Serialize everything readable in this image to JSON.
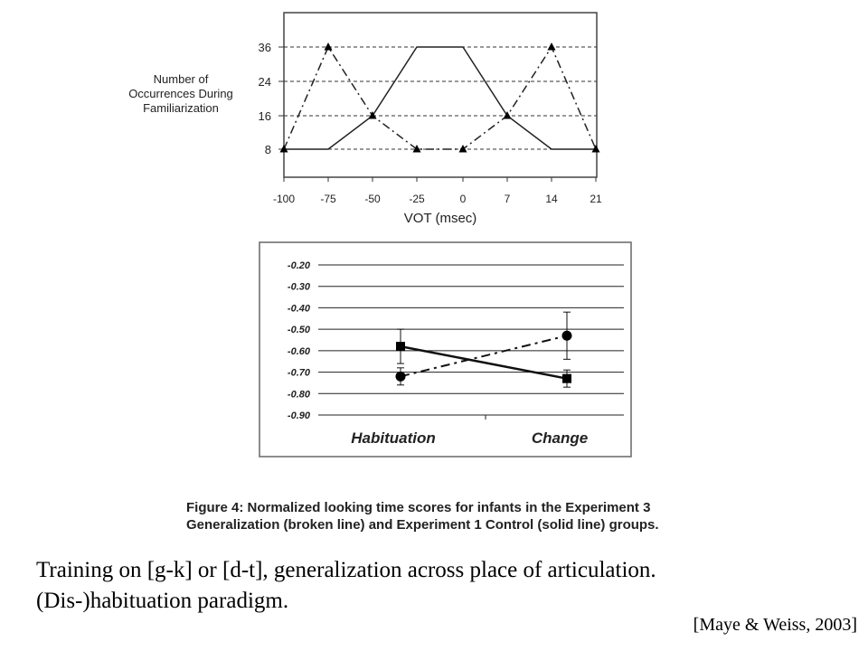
{
  "chart_data": [
    {
      "type": "line",
      "ylabel_lines": [
        "Number of",
        "Occurrences During",
        "Familiarization"
      ],
      "xlabel": "VOT (msec)",
      "categories": [
        "-100",
        "-75",
        "-50",
        "-25",
        "0",
        "7",
        "14",
        "21"
      ],
      "yticks": [
        8,
        16,
        24,
        36
      ],
      "grid": "dashed horizontal at y ticks",
      "series": [
        {
          "style": "solid",
          "values": [
            8,
            8,
            16,
            36,
            36,
            16,
            8,
            8
          ]
        },
        {
          "style": "dash-dot",
          "marker": "triangle",
          "values": [
            8,
            36,
            16,
            8,
            8,
            16,
            36,
            8
          ]
        }
      ]
    },
    {
      "type": "line",
      "categories": [
        "Habituation",
        "Change"
      ],
      "yticks": [
        "-0.20",
        "-0.30",
        "-0.40",
        "-0.50",
        "-0.60",
        "-0.70",
        "-0.80",
        "-0.90"
      ],
      "ylim": [
        -0.9,
        -0.2
      ],
      "grid": "solid horizontal at y ticks",
      "series": [
        {
          "style": "solid",
          "marker": "square",
          "values": [
            -0.58,
            -0.73
          ],
          "error": [
            0.08,
            0.04
          ]
        },
        {
          "style": "dash-dot",
          "marker": "circle",
          "values": [
            -0.72,
            -0.53
          ],
          "error": [
            0.04,
            0.11
          ]
        }
      ]
    }
  ],
  "caption": {
    "line1": "Figure 4: Normalized looking time scores for infants in the Experiment 3",
    "line2": "Generalization (broken line) and Experiment 1 Control (solid line) groups."
  },
  "body": {
    "line1": "Training on [g-k] or [d-t], generalization across place of articulation.",
    "line2": "(Dis-)habituation paradigm."
  },
  "citation": "[Maye & Weiss, 2003]"
}
